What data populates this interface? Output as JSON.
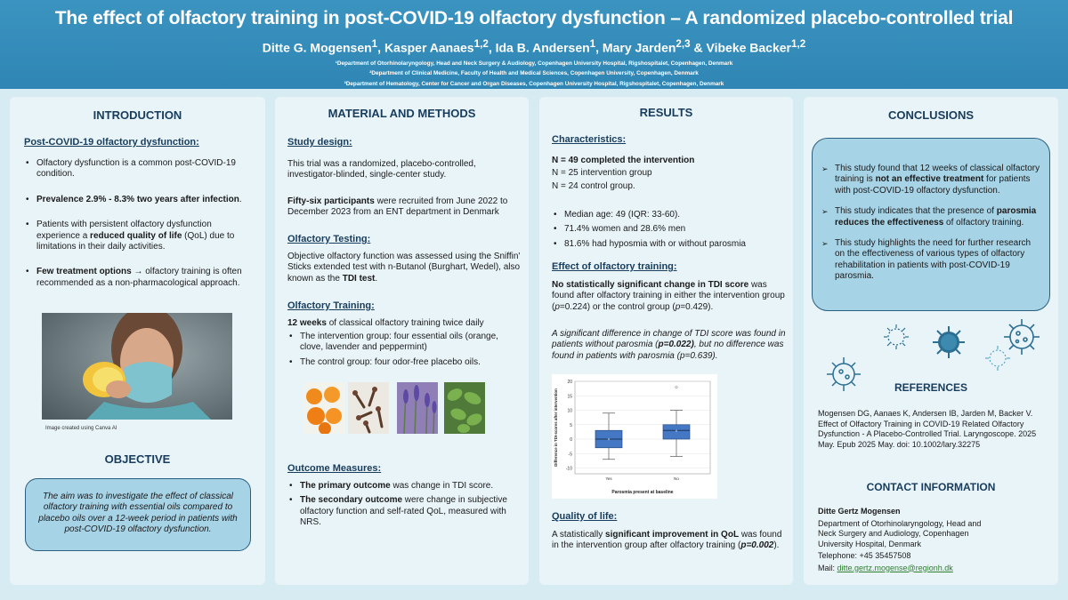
{
  "header": {
    "title": "The effect of olfactory training in post-COVID-19 olfactory dysfunction – A randomized placebo-controlled trial",
    "authors": [
      {
        "name": "Ditte G. Mogensen",
        "sup": "1"
      },
      {
        "name": "Kasper Aanaes",
        "sup": "1,2"
      },
      {
        "name": "Ida B. Andersen",
        "sup": "1"
      },
      {
        "name": "Mary Jarden",
        "sup": "2,3"
      },
      {
        "name": "Vibeke Backer",
        "sup": "1,2"
      }
    ],
    "affiliations": [
      "¹Department of Otorhinolaryngology, Head and Neck Surgery & Audiology, Copenhagen University Hospital, Rigshospitalet, Copenhagen, Denmark",
      "²Department of Clinical Medicine, Faculty of Health and Medical Sciences, Copenhagen University, Copenhagen, Denmark",
      "³Department of Hematology, Center for Cancer and Organ Diseases, Copenhagen University Hospital, Rigshospitalet, Copenhagen, Denmark"
    ]
  },
  "intro": {
    "title": "INTRODUCTION",
    "sub": "Post-COVID-19 olfactory dysfunction:",
    "b1": "Olfactory dysfunction is a common post-COVID-19 condition.",
    "b2": "Prevalence 2.9% - 8.3% two years after infection",
    "b2_end": ".",
    "b3_pre": "Patients with persistent olfactory dysfunction experience a ",
    "b3_bold": "reduced quality of life",
    "b3_post": " (QoL) due to limitations in their daily activities.",
    "b4_bold": "Few treatment options",
    "b4_arrow": "→",
    "b4_post": " olfactory training is often recommended as a non-pharmacological approach.",
    "caption": "Image created using Canva AI"
  },
  "objective": {
    "title": "OBJECTIVE",
    "text": "The aim was to investigate the effect of classical olfactory training with essential oils compared to placebo oils over a 12-week period in patients with post-COVID-19 olfactory dysfunction."
  },
  "methods": {
    "title": "MATERIAL AND METHODS",
    "sub1": "Study design:",
    "t1": "This trial was a randomized, placebo-controlled, investigator-blinded, single-center study.",
    "t2_bold": "Fifty-six participants",
    "t2_post": " were recruited from June 2022 to December 2023 from an ENT department in Denmark",
    "sub2": "Olfactory Testing:",
    "t3_pre": "Objective olfactory function was assessed using the Sniffin' Sticks extended test with n-Butanol (Burghart, Wedel), also known as the ",
    "t3_bold": "TDI test",
    "t3_end": ".",
    "sub3": "Olfactory Training:",
    "t4_bold": "12 weeks",
    "t4_post": " of classical olfactory training twice daily",
    "b1": "The intervention group: four essential oils (orange, clove, lavender and peppermint)",
    "b2": "The control group: four odor-free placebo oils.",
    "sub4": "Outcome Measures:",
    "o1_bold": "The primary outcome",
    "o1_post": " was change in TDI score.",
    "o2_bold": "The secondary outcome",
    "o2_post": " were change in subjective olfactory function and self-rated QoL, measured with NRS."
  },
  "results": {
    "title": "RESULTS",
    "sub1": "Characteristics:",
    "n1": "N = 49 completed the intervention",
    "n2": "N = 25 intervention group",
    "n3": "N = 24 control group.",
    "b1": "Median age: 49 (IQR: 33-60).",
    "b2": "71.4% women and 28.6% men",
    "b3": "81.6% had hyposmia with or without parosmia",
    "sub2": "Effect of olfactory training:",
    "e_bold": "No statistically significant change in TDI score",
    "e_1": " was found after olfactory training in either the intervention group (",
    "e_p1": "p",
    "e_2": "=0.224) or the control group (",
    "e_p2": "p",
    "e_3": "=0.429).",
    "i_1": "A significant difference in change of TDI score was found in patients without parosmia (",
    "i_bold": "p=0.022)",
    "i_2": ", but no difference was found in patients with parosmia (p=0.639).",
    "sub3": "Quality of life:",
    "q_1": "A statistically ",
    "q_bold": "significant improvement in QoL",
    "q_2": " was found in the intervention group after olfactory training (",
    "q_p": "p=0.002",
    "q_3": ")."
  },
  "chart_data": {
    "type": "box",
    "categories": [
      "Yes",
      "No"
    ],
    "xlabel": "Parosmia present at baseline",
    "ylabel": "Difference in TDI-scores after intervention",
    "ylim": [
      -12,
      20
    ],
    "yticks": [
      20,
      15,
      10,
      5,
      0,
      -5,
      -10
    ],
    "series": [
      {
        "category": "Yes",
        "min": -7,
        "q1": -3,
        "median": 0,
        "q3": 3,
        "max": 9,
        "mean": 0,
        "outliers": []
      },
      {
        "category": "No",
        "min": -6,
        "q1": 0,
        "median": 3,
        "q3": 5,
        "max": 10,
        "mean": 3,
        "outliers": [
          18
        ]
      }
    ],
    "color": "#4477c4"
  },
  "conclusions": {
    "title": "CONCLUSIONS",
    "c1_1": "This study found that 12 weeks of classical olfactory training is ",
    "c1_bold": "not an effective treatment",
    "c1_2": " for patients with post-COVID-19 olfactory dysfunction.",
    "c2_1": "This study indicates that the presence of ",
    "c2_bold": "parosmia reduces the effectiveness",
    "c2_2": " of olfactory training.",
    "c3": "This study highlights the need for further research on the effectiveness of various types of olfactory rehabilitation in patients with post-COVID-19 parosmia.",
    "arrow": "➢"
  },
  "references": {
    "title": "REFERENCES",
    "text": "Mogensen DG, Aanaes K, Andersen IB, Jarden M, Backer V. Effect of Olfactory Training in COVID-19 Related Olfactory Dysfunction - A Placebo-Controlled Trial. Laryngoscope. 2025 May. Epub 2025 May. doi: 10.1002/lary.32275"
  },
  "contact": {
    "title": "CONTACT INFORMATION",
    "name": "Ditte Gertz Mogensen",
    "dept": "Department of Otorhinolaryngology, Head and Neck Surgery and Audiology, Copenhagen University Hospital, Denmark",
    "phone": "Telephone: +45 35457508",
    "mail_label": "Mail: ",
    "mail": "ditte.gertz.mogense@regionh.dk"
  },
  "colors": {
    "header": "#2f86b4",
    "panel": "#e9f4f9",
    "box": "#a7d3e6",
    "heading": "#173c5c",
    "virus": "#2c6f93"
  }
}
